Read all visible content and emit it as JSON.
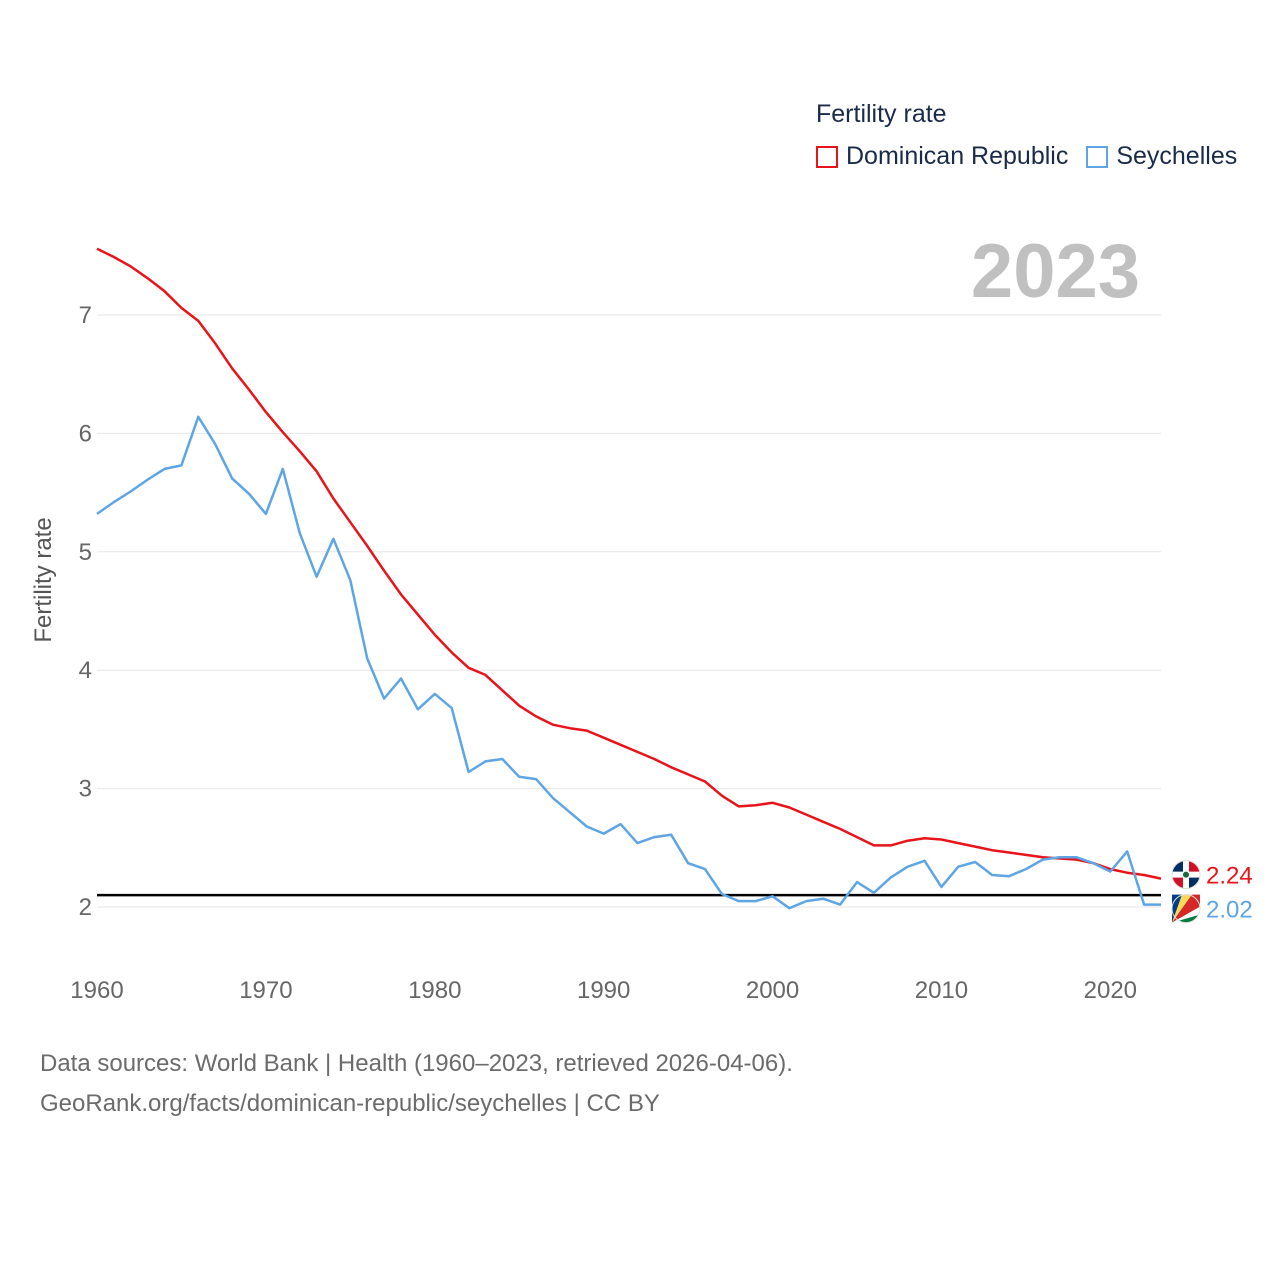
{
  "legend": {
    "title": "Fertility rate",
    "items": [
      {
        "label": "Dominican Republic",
        "color": "#e8141a"
      },
      {
        "label": "Seychelles",
        "color": "#5da5e4"
      }
    ]
  },
  "year_label": "2023",
  "source": {
    "line1": "Data sources: World Bank | Health (1960–2023, retrieved 2026-04-06).",
    "line2": "GeoRank.org/facts/dominican-republic/seychelles | CC BY"
  },
  "chart_data": {
    "type": "line",
    "title": "Fertility rate",
    "xlabel": "",
    "ylabel": "Fertility rate",
    "xlim": [
      1960,
      2023
    ],
    "ylim": [
      1.5,
      7.6
    ],
    "yticks": [
      2,
      3,
      4,
      5,
      6,
      7
    ],
    "xticks": [
      1960,
      1970,
      1980,
      1990,
      2000,
      2010,
      2020
    ],
    "reference_line": {
      "value": 2.1,
      "color": "#000000"
    },
    "x": [
      1960,
      1961,
      1962,
      1963,
      1964,
      1965,
      1966,
      1967,
      1968,
      1969,
      1970,
      1971,
      1972,
      1973,
      1974,
      1975,
      1976,
      1977,
      1978,
      1979,
      1980,
      1981,
      1982,
      1983,
      1984,
      1985,
      1986,
      1987,
      1988,
      1989,
      1990,
      1991,
      1992,
      1993,
      1994,
      1995,
      1996,
      1997,
      1998,
      1999,
      2000,
      2001,
      2002,
      2003,
      2004,
      2005,
      2006,
      2007,
      2008,
      2009,
      2010,
      2011,
      2012,
      2013,
      2014,
      2015,
      2016,
      2017,
      2018,
      2019,
      2020,
      2021,
      2022,
      2023
    ],
    "series": [
      {
        "name": "Dominican Republic",
        "color": "#e8141a",
        "end_label": "2.24",
        "values": [
          7.56,
          7.49,
          7.41,
          7.31,
          7.2,
          7.06,
          6.95,
          6.76,
          6.55,
          6.37,
          6.18,
          6.01,
          5.85,
          5.68,
          5.45,
          5.25,
          5.05,
          4.84,
          4.64,
          4.47,
          4.3,
          4.15,
          4.02,
          3.96,
          3.83,
          3.7,
          3.61,
          3.54,
          3.51,
          3.49,
          3.43,
          3.37,
          3.31,
          3.25,
          3.18,
          3.12,
          3.06,
          2.94,
          2.85,
          2.86,
          2.88,
          2.84,
          2.78,
          2.72,
          2.66,
          2.59,
          2.52,
          2.52,
          2.56,
          2.58,
          2.57,
          2.54,
          2.51,
          2.48,
          2.46,
          2.44,
          2.42,
          2.41,
          2.4,
          2.37,
          2.32,
          2.29,
          2.27,
          2.24
        ]
      },
      {
        "name": "Seychelles",
        "color": "#5da5e4",
        "end_label": "2.02",
        "values": [
          5.32,
          5.42,
          5.51,
          5.61,
          5.7,
          5.73,
          6.14,
          5.91,
          5.62,
          5.49,
          5.32,
          5.7,
          5.16,
          4.79,
          5.11,
          4.76,
          4.1,
          3.76,
          3.93,
          3.67,
          3.8,
          3.68,
          3.14,
          3.23,
          3.25,
          3.1,
          3.08,
          2.92,
          2.8,
          2.68,
          2.62,
          2.7,
          2.54,
          2.59,
          2.61,
          2.37,
          2.32,
          2.11,
          2.05,
          2.05,
          2.09,
          1.99,
          2.05,
          2.07,
          2.02,
          2.21,
          2.12,
          2.25,
          2.34,
          2.39,
          2.17,
          2.34,
          2.38,
          2.27,
          2.26,
          2.32,
          2.4,
          2.42,
          2.42,
          2.37,
          2.3,
          2.47,
          2.02,
          2.02
        ]
      }
    ]
  }
}
